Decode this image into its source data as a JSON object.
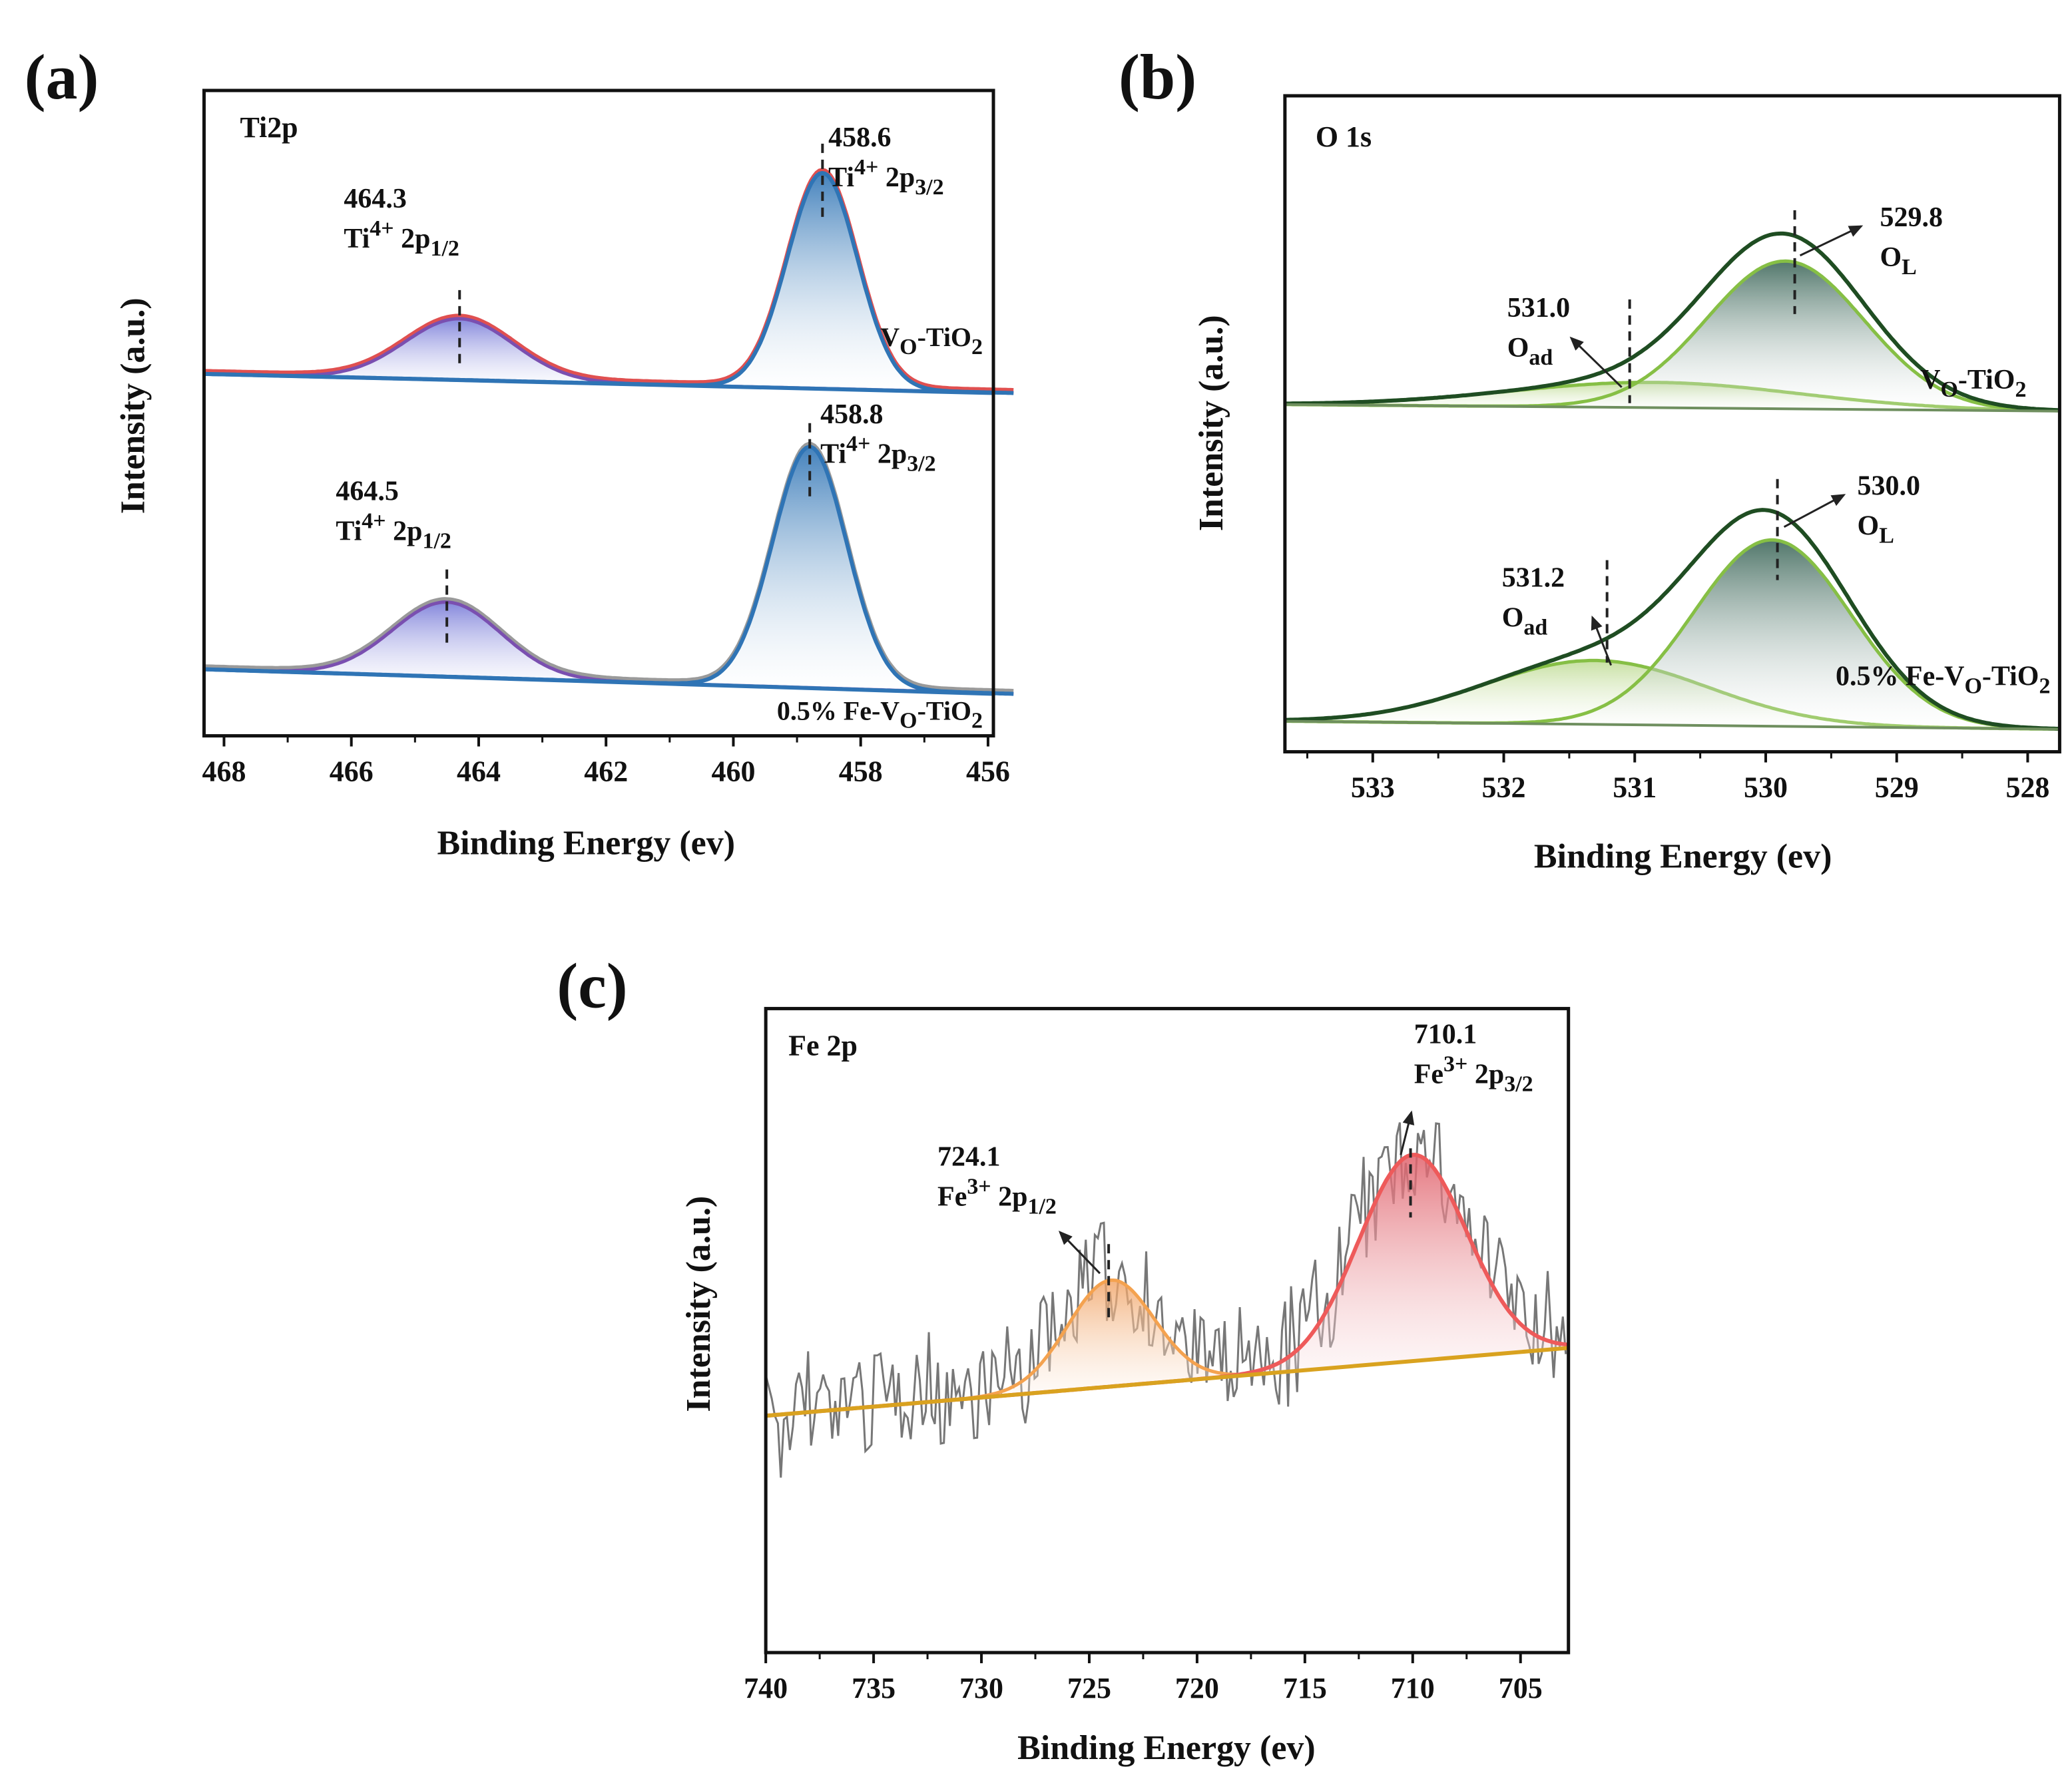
{
  "panels": {
    "a": {
      "letter": "(a)",
      "title": "Ti2p",
      "xlabel": "Binding Energy (ev)",
      "ylabel": "Intensity  (a.u.)",
      "ticks": [
        "468",
        "466",
        "464",
        "462",
        "460",
        "458",
        "456"
      ],
      "samples": [
        {
          "p1": "V",
          "s1": "O",
          "p2": "-TiO",
          "s2": "2"
        },
        {
          "p1": "0.5% Fe-V",
          "s1": "O",
          "p2": "-TiO",
          "s2": "2"
        }
      ],
      "annotations": [
        {
          "value": "458.6",
          "el": "Ti",
          "sup": "4+",
          "orb": " 2p",
          "sub": "3/2"
        },
        {
          "value": "464.3",
          "el": "Ti",
          "sup": "4+",
          "orb": " 2p",
          "sub": "1/2"
        },
        {
          "value": "458.8",
          "el": "Ti",
          "sup": "4+",
          "orb": " 2p",
          "sub": "3/2"
        },
        {
          "value": "464.5",
          "el": "Ti",
          "sup": "4+",
          "orb": " 2p",
          "sub": "1/2"
        }
      ]
    },
    "b": {
      "letter": "(b)",
      "title": "O 1s",
      "xlabel": "Binding Energy (ev)",
      "ylabel": "Intensity  (a.u.)",
      "ticks": [
        "533",
        "532",
        "531",
        "530",
        "529",
        "528"
      ],
      "samples": [
        {
          "p1": "V",
          "s1": "O",
          "p2": "-TiO",
          "s2": "2"
        },
        {
          "p1": "0.5% Fe-V",
          "s1": "O",
          "p2": "-TiO",
          "s2": "2"
        }
      ],
      "annotations": [
        {
          "value": "529.8",
          "el": "O",
          "sub": "L"
        },
        {
          "value": "531.0",
          "el": "O",
          "sub": "ad"
        },
        {
          "value": "530.0",
          "el": "O",
          "sub": "L"
        },
        {
          "value": "531.2",
          "el": "O",
          "sub": "ad"
        }
      ]
    },
    "c": {
      "letter": "(c)",
      "title": "Fe 2p",
      "xlabel": "Binding Energy (ev)",
      "ylabel": "Intensity  (a.u.)",
      "ticks": [
        "740",
        "735",
        "730",
        "725",
        "720",
        "715",
        "710",
        "705"
      ],
      "annotations": [
        {
          "value": "710.1",
          "el": "Fe",
          "sup": "3+",
          "orb": " 2p",
          "sub": "3/2"
        },
        {
          "value": "724.1",
          "el": "Fe",
          "sup": "3+",
          "orb": " 2p",
          "sub": "1/2"
        }
      ]
    }
  },
  "colors": {
    "ti_2p32": "#2f74b5",
    "ti_2p12": "#7a4fb0",
    "o_lattice_fill": "#476f62",
    "o_component_line": "#86bf45",
    "o_envelope": "#1f4d22",
    "fe_2p32": "#ee5a5a",
    "fe_2p12": "#f4a24f",
    "fe_background": "#d9a21f",
    "raw_data": "#777777"
  },
  "chart_data": [
    {
      "type": "line",
      "title": "Ti2p",
      "xlabel": "Binding Energy (ev)",
      "ylabel": "Intensity (a.u.)",
      "xlim": [
        468,
        456
      ],
      "xticks": [
        468,
        466,
        464,
        462,
        460,
        458,
        456
      ],
      "series": [
        {
          "name": "VO-TiO2",
          "peaks": [
            {
              "center": 458.6,
              "label": "Ti4+ 2p3/2",
              "rel_height": 1.0
            },
            {
              "center": 464.3,
              "label": "Ti4+ 2p1/2",
              "rel_height": 0.29
            }
          ]
        },
        {
          "name": "0.5% Fe-VO-TiO2",
          "peaks": [
            {
              "center": 458.8,
              "label": "Ti4+ 2p3/2",
              "rel_height": 1.0
            },
            {
              "center": 464.5,
              "label": "Ti4+ 2p1/2",
              "rel_height": 0.31
            }
          ]
        }
      ]
    },
    {
      "type": "line",
      "title": "O 1s",
      "xlabel": "Binding Energy (ev)",
      "ylabel": "Intensity (a.u.)",
      "xlim": [
        533.7,
        527.8
      ],
      "xticks": [
        533,
        532,
        531,
        530,
        529,
        528
      ],
      "series": [
        {
          "name": "VO-TiO2",
          "peaks": [
            {
              "center": 529.8,
              "label": "OL",
              "rel_height": 1.0
            },
            {
              "center": 531.0,
              "label": "Oad",
              "rel_height": 0.17
            }
          ]
        },
        {
          "name": "0.5% Fe-VO-TiO2",
          "peaks": [
            {
              "center": 530.0,
              "label": "OL",
              "rel_height": 1.0
            },
            {
              "center": 531.2,
              "label": "Oad",
              "rel_height": 0.34
            }
          ]
        }
      ]
    },
    {
      "type": "line",
      "title": "Fe 2p",
      "xlabel": "Binding Energy (ev)",
      "ylabel": "Intensity (a.u.)",
      "xlim": [
        740,
        702
      ],
      "xticks": [
        740,
        735,
        730,
        725,
        720,
        715,
        710,
        705
      ],
      "series": [
        {
          "name": "0.5% Fe-VO-TiO2",
          "peaks": [
            {
              "center": 710.1,
              "label": "Fe3+ 2p3/2",
              "rel_height": 1.0
            },
            {
              "center": 724.1,
              "label": "Fe3+ 2p1/2",
              "rel_height": 0.52
            }
          ]
        }
      ]
    }
  ]
}
